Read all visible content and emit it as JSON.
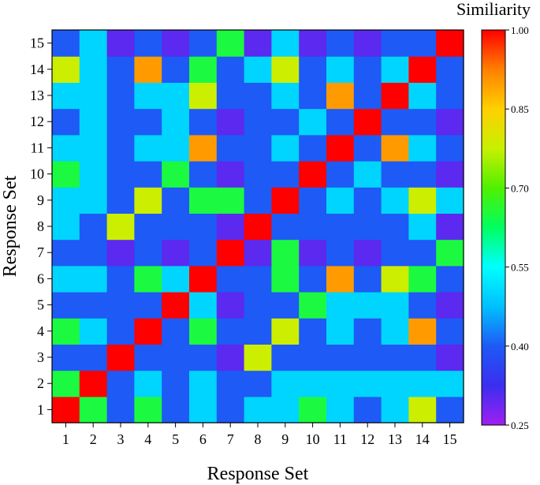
{
  "chart_data": {
    "type": "heatmap",
    "title": "",
    "xlabel": "Response Set",
    "ylabel": "Response Set",
    "x_categories": [
      "1",
      "2",
      "3",
      "4",
      "5",
      "6",
      "7",
      "8",
      "9",
      "10",
      "11",
      "12",
      "13",
      "14",
      "15"
    ],
    "y_categories": [
      "1",
      "2",
      "3",
      "4",
      "5",
      "6",
      "7",
      "8",
      "9",
      "10",
      "11",
      "12",
      "13",
      "14",
      "15"
    ],
    "colorbar": {
      "title": "Similiarity",
      "min": 0.25,
      "max": 1.0,
      "ticks": [
        "0.25",
        "0.40",
        "0.55",
        "0.70",
        "0.85",
        "1.00"
      ],
      "tick_values": [
        0.25,
        0.4,
        0.55,
        0.7,
        0.85,
        1.0
      ],
      "colors": [
        "#a020f0",
        "#3a2ef0",
        "#1e5af5",
        "#00c0ff",
        "#00ffff",
        "#00ff60",
        "#50f000",
        "#c8f000",
        "#ffd000",
        "#ff8000",
        "#ff0000"
      ]
    },
    "values": [
      [
        1.0,
        0.65,
        0.4,
        0.65,
        0.4,
        0.5,
        0.4,
        0.5,
        0.5,
        0.65,
        0.5,
        0.4,
        0.5,
        0.78,
        0.4
      ],
      [
        0.65,
        1.0,
        0.4,
        0.5,
        0.4,
        0.5,
        0.4,
        0.4,
        0.5,
        0.5,
        0.5,
        0.5,
        0.5,
        0.5,
        0.5
      ],
      [
        0.4,
        0.4,
        1.0,
        0.4,
        0.4,
        0.4,
        0.3,
        0.78,
        0.4,
        0.4,
        0.4,
        0.4,
        0.4,
        0.4,
        0.3
      ],
      [
        0.65,
        0.5,
        0.4,
        1.0,
        0.4,
        0.65,
        0.4,
        0.4,
        0.78,
        0.4,
        0.5,
        0.4,
        0.5,
        0.9,
        0.4
      ],
      [
        0.4,
        0.4,
        0.4,
        0.4,
        1.0,
        0.5,
        0.3,
        0.4,
        0.4,
        0.65,
        0.5,
        0.5,
        0.5,
        0.4,
        0.3
      ],
      [
        0.5,
        0.5,
        0.4,
        0.65,
        0.5,
        1.0,
        0.4,
        0.4,
        0.65,
        0.4,
        0.9,
        0.4,
        0.78,
        0.65,
        0.4
      ],
      [
        0.4,
        0.4,
        0.3,
        0.4,
        0.3,
        0.4,
        1.0,
        0.3,
        0.65,
        0.3,
        0.4,
        0.3,
        0.4,
        0.4,
        0.65
      ],
      [
        0.5,
        0.4,
        0.78,
        0.4,
        0.4,
        0.4,
        0.3,
        1.0,
        0.4,
        0.4,
        0.4,
        0.4,
        0.4,
        0.5,
        0.3
      ],
      [
        0.5,
        0.5,
        0.4,
        0.78,
        0.4,
        0.65,
        0.65,
        0.4,
        1.0,
        0.4,
        0.5,
        0.4,
        0.5,
        0.78,
        0.5
      ],
      [
        0.65,
        0.5,
        0.4,
        0.4,
        0.65,
        0.4,
        0.3,
        0.4,
        0.4,
        1.0,
        0.4,
        0.5,
        0.4,
        0.4,
        0.3
      ],
      [
        0.5,
        0.5,
        0.4,
        0.5,
        0.5,
        0.9,
        0.4,
        0.4,
        0.5,
        0.4,
        1.0,
        0.4,
        0.9,
        0.5,
        0.4
      ],
      [
        0.4,
        0.5,
        0.4,
        0.4,
        0.5,
        0.4,
        0.3,
        0.4,
        0.4,
        0.5,
        0.4,
        1.0,
        0.4,
        0.4,
        0.3
      ],
      [
        0.5,
        0.5,
        0.4,
        0.5,
        0.5,
        0.78,
        0.4,
        0.4,
        0.5,
        0.4,
        0.9,
        0.4,
        1.0,
        0.5,
        0.4
      ],
      [
        0.78,
        0.5,
        0.4,
        0.9,
        0.4,
        0.65,
        0.4,
        0.5,
        0.78,
        0.4,
        0.5,
        0.4,
        0.5,
        1.0,
        0.4
      ],
      [
        0.4,
        0.5,
        0.3,
        0.4,
        0.3,
        0.4,
        0.65,
        0.3,
        0.5,
        0.3,
        0.4,
        0.3,
        0.4,
        0.4,
        1.0
      ]
    ]
  }
}
